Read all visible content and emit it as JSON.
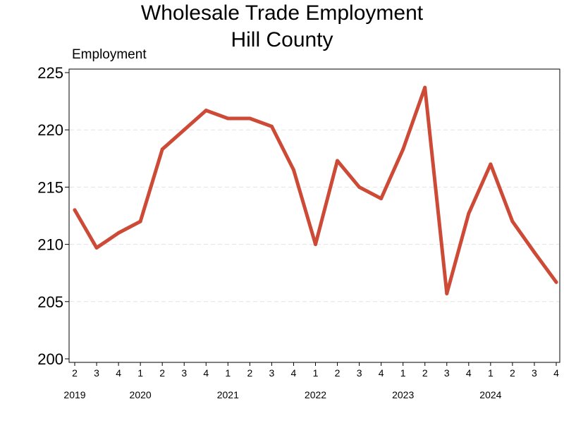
{
  "chart_data": {
    "type": "line",
    "title": "Wholesale Trade Employment",
    "subtitle": "Hill County",
    "ylabel": "Employment",
    "xlabel": "",
    "ylim": [
      200,
      225
    ],
    "yticks": [
      "200",
      "205",
      "210",
      "215",
      "220",
      "225"
    ],
    "grid": true,
    "line_color": "#cd4a37",
    "quarter_labels": [
      "2",
      "3",
      "4",
      "1",
      "2",
      "3",
      "4",
      "1",
      "2",
      "3",
      "4",
      "1",
      "2",
      "3",
      "4",
      "1",
      "2",
      "3",
      "4",
      "1",
      "2",
      "3",
      "4"
    ],
    "year_labels": [
      {
        "label": "2019",
        "index": 0
      },
      {
        "label": "2020",
        "index": 3
      },
      {
        "label": "2021",
        "index": 7
      },
      {
        "label": "2022",
        "index": 11
      },
      {
        "label": "2023",
        "index": 15
      },
      {
        "label": "2024",
        "index": 19
      }
    ],
    "series": [
      {
        "values": [
          213.0,
          209.7,
          211.0,
          212.0,
          218.3,
          220.0,
          221.7,
          221.0,
          221.0,
          220.3,
          216.5,
          210.0,
          217.3,
          215.0,
          214.0,
          218.3,
          223.7,
          205.7,
          212.7,
          217.0,
          212.0,
          209.3,
          206.7
        ]
      }
    ]
  }
}
